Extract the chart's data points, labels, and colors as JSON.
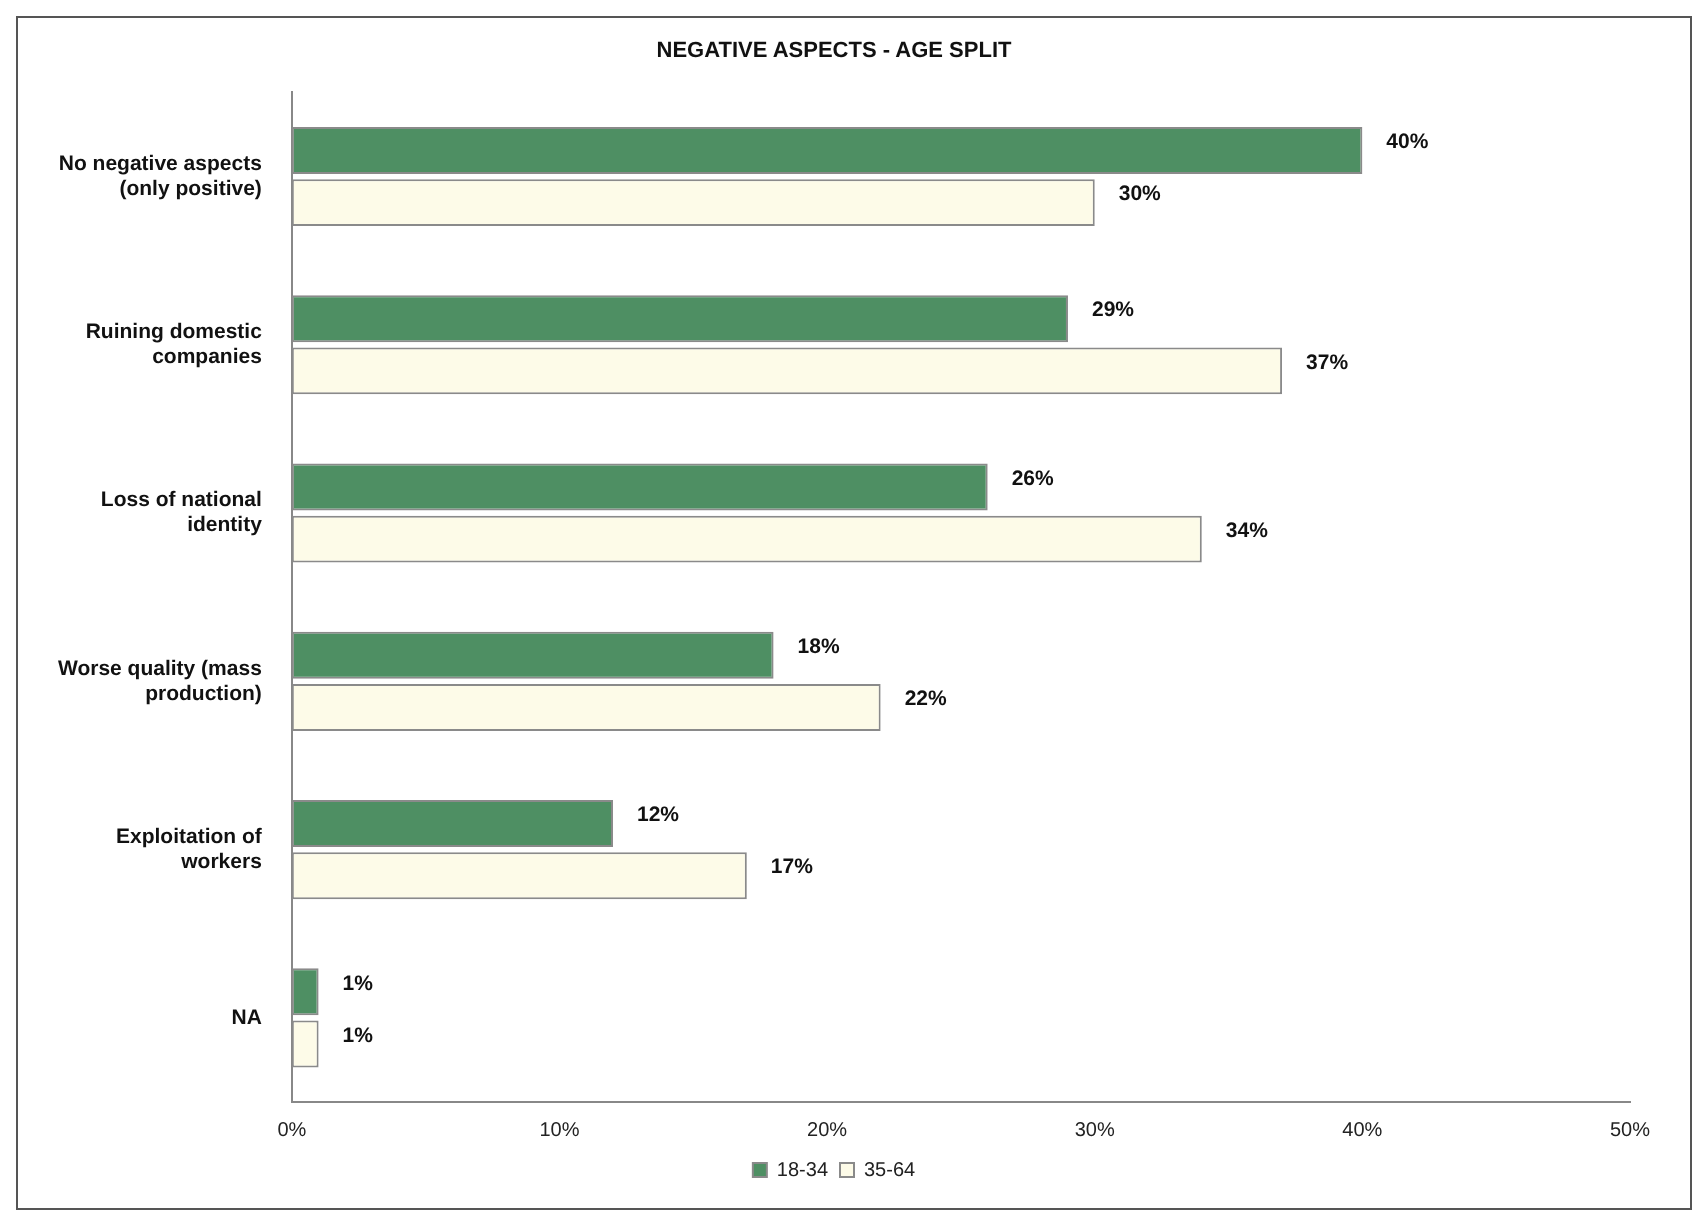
{
  "chart_data": {
    "type": "bar",
    "orientation": "horizontal",
    "title": "NEGATIVE ASPECTS - AGE SPLIT",
    "categories": [
      "No negative aspects (only positive)",
      "Ruining domestic companies",
      "Loss of national identity",
      "Worse quality (mass production)",
      "Exploitation of workers",
      "NA"
    ],
    "series": [
      {
        "name": "18-34",
        "color": "#4e8f63",
        "values": [
          40,
          29,
          26,
          18,
          12,
          1
        ],
        "value_labels": [
          "40%",
          "29%",
          "26%",
          "18%",
          "12%",
          "1%"
        ]
      },
      {
        "name": "35-64",
        "color": "#fdfbe8",
        "values": [
          30,
          37,
          34,
          22,
          17,
          1
        ],
        "value_labels": [
          "30%",
          "37%",
          "34%",
          "22%",
          "17%",
          "1%"
        ]
      }
    ],
    "xlim": [
      0,
      50
    ],
    "xticks": [
      {
        "value": 0,
        "label": "0%"
      },
      {
        "value": 10,
        "label": "10%"
      },
      {
        "value": 20,
        "label": "20%"
      },
      {
        "value": 30,
        "label": "30%"
      },
      {
        "value": 40,
        "label": "40%"
      },
      {
        "value": 50,
        "label": "50%"
      }
    ],
    "grid": false,
    "legend": "bottom"
  }
}
